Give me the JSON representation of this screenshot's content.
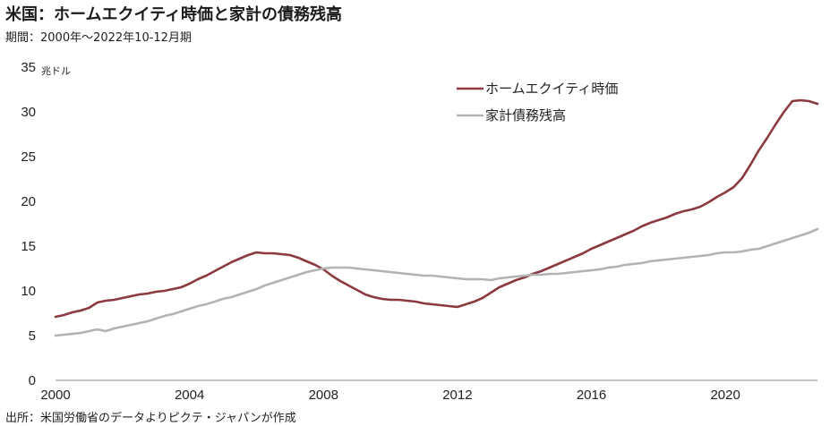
{
  "header": {
    "title": "米国：ホームエクイティ時価と家計の債務残高",
    "subtitle": "期間：2000年～2022年10-12月期"
  },
  "footer": {
    "source": "出所：米国労働省のデータよりピクテ・ジャパンが作成"
  },
  "chart_data": {
    "type": "line",
    "title": "米国：ホームエクイティ時価と家計の債務残高",
    "subtitle": "期間：2000年～2022年10-12月期",
    "ylabel": "兆ドル",
    "xlabel": "",
    "xlim": [
      2000,
      2022.75
    ],
    "ylim": [
      0,
      35
    ],
    "x_ticks": [
      2000,
      2004,
      2008,
      2012,
      2016,
      2020
    ],
    "y_ticks": [
      0,
      5,
      10,
      15,
      20,
      25,
      30,
      35
    ],
    "grid": false,
    "legend_position": "top-right",
    "series": [
      {
        "name": "ホームエクイティ時価",
        "color": "#8b3a40",
        "points": [
          [
            2000.0,
            7.1
          ],
          [
            2000.25,
            7.3
          ],
          [
            2000.5,
            7.6
          ],
          [
            2000.75,
            7.8
          ],
          [
            2001.0,
            8.1
          ],
          [
            2001.25,
            8.7
          ],
          [
            2001.5,
            8.9
          ],
          [
            2001.75,
            9.0
          ],
          [
            2002.0,
            9.2
          ],
          [
            2002.25,
            9.4
          ],
          [
            2002.5,
            9.6
          ],
          [
            2002.75,
            9.7
          ],
          [
            2003.0,
            9.9
          ],
          [
            2003.25,
            10.0
          ],
          [
            2003.5,
            10.2
          ],
          [
            2003.75,
            10.4
          ],
          [
            2004.0,
            10.8
          ],
          [
            2004.25,
            11.3
          ],
          [
            2004.5,
            11.7
          ],
          [
            2004.75,
            12.2
          ],
          [
            2005.0,
            12.7
          ],
          [
            2005.25,
            13.2
          ],
          [
            2005.5,
            13.6
          ],
          [
            2005.75,
            14.0
          ],
          [
            2006.0,
            14.3
          ],
          [
            2006.25,
            14.2
          ],
          [
            2006.5,
            14.2
          ],
          [
            2006.75,
            14.1
          ],
          [
            2007.0,
            14.0
          ],
          [
            2007.25,
            13.7
          ],
          [
            2007.5,
            13.3
          ],
          [
            2007.75,
            12.9
          ],
          [
            2008.0,
            12.4
          ],
          [
            2008.25,
            11.7
          ],
          [
            2008.5,
            11.1
          ],
          [
            2008.75,
            10.6
          ],
          [
            2009.0,
            10.1
          ],
          [
            2009.25,
            9.6
          ],
          [
            2009.5,
            9.3
          ],
          [
            2009.75,
            9.1
          ],
          [
            2010.0,
            9.0
          ],
          [
            2010.25,
            9.0
          ],
          [
            2010.5,
            8.9
          ],
          [
            2010.75,
            8.8
          ],
          [
            2011.0,
            8.6
          ],
          [
            2011.25,
            8.5
          ],
          [
            2011.5,
            8.4
          ],
          [
            2011.75,
            8.3
          ],
          [
            2012.0,
            8.2
          ],
          [
            2012.25,
            8.5
          ],
          [
            2012.5,
            8.8
          ],
          [
            2012.75,
            9.2
          ],
          [
            2013.0,
            9.8
          ],
          [
            2013.25,
            10.4
          ],
          [
            2013.5,
            10.8
          ],
          [
            2013.75,
            11.2
          ],
          [
            2014.0,
            11.5
          ],
          [
            2014.25,
            11.9
          ],
          [
            2014.5,
            12.2
          ],
          [
            2014.75,
            12.6
          ],
          [
            2015.0,
            13.0
          ],
          [
            2015.25,
            13.4
          ],
          [
            2015.5,
            13.8
          ],
          [
            2015.75,
            14.2
          ],
          [
            2016.0,
            14.7
          ],
          [
            2016.25,
            15.1
          ],
          [
            2016.5,
            15.5
          ],
          [
            2016.75,
            15.9
          ],
          [
            2017.0,
            16.3
          ],
          [
            2017.25,
            16.7
          ],
          [
            2017.5,
            17.2
          ],
          [
            2017.75,
            17.6
          ],
          [
            2018.0,
            17.9
          ],
          [
            2018.25,
            18.2
          ],
          [
            2018.5,
            18.6
          ],
          [
            2018.75,
            18.9
          ],
          [
            2019.0,
            19.1
          ],
          [
            2019.25,
            19.4
          ],
          [
            2019.5,
            19.9
          ],
          [
            2019.75,
            20.5
          ],
          [
            2020.0,
            21.0
          ],
          [
            2020.25,
            21.6
          ],
          [
            2020.5,
            22.6
          ],
          [
            2020.75,
            24.1
          ],
          [
            2021.0,
            25.7
          ],
          [
            2021.25,
            27.1
          ],
          [
            2021.5,
            28.6
          ],
          [
            2021.75,
            30.0
          ],
          [
            2022.0,
            31.2
          ],
          [
            2022.25,
            31.3
          ],
          [
            2022.5,
            31.2
          ],
          [
            2022.75,
            30.9
          ]
        ]
      },
      {
        "name": "家計債務残高",
        "color": "#b3b3b3",
        "points": [
          [
            2000.0,
            5.0
          ],
          [
            2000.25,
            5.1
          ],
          [
            2000.5,
            5.2
          ],
          [
            2000.75,
            5.3
          ],
          [
            2001.0,
            5.5
          ],
          [
            2001.25,
            5.7
          ],
          [
            2001.5,
            5.5
          ],
          [
            2001.75,
            5.8
          ],
          [
            2002.0,
            6.0
          ],
          [
            2002.25,
            6.2
          ],
          [
            2002.5,
            6.4
          ],
          [
            2002.75,
            6.6
          ],
          [
            2003.0,
            6.9
          ],
          [
            2003.25,
            7.2
          ],
          [
            2003.5,
            7.4
          ],
          [
            2003.75,
            7.7
          ],
          [
            2004.0,
            8.0
          ],
          [
            2004.25,
            8.3
          ],
          [
            2004.5,
            8.5
          ],
          [
            2004.75,
            8.8
          ],
          [
            2005.0,
            9.1
          ],
          [
            2005.25,
            9.3
          ],
          [
            2005.5,
            9.6
          ],
          [
            2005.75,
            9.9
          ],
          [
            2006.0,
            10.2
          ],
          [
            2006.25,
            10.6
          ],
          [
            2006.5,
            10.9
          ],
          [
            2006.75,
            11.2
          ],
          [
            2007.0,
            11.5
          ],
          [
            2007.25,
            11.8
          ],
          [
            2007.5,
            12.1
          ],
          [
            2007.75,
            12.3
          ],
          [
            2008.0,
            12.5
          ],
          [
            2008.25,
            12.6
          ],
          [
            2008.5,
            12.6
          ],
          [
            2008.75,
            12.6
          ],
          [
            2009.0,
            12.5
          ],
          [
            2009.25,
            12.4
          ],
          [
            2009.5,
            12.3
          ],
          [
            2009.75,
            12.2
          ],
          [
            2010.0,
            12.1
          ],
          [
            2010.25,
            12.0
          ],
          [
            2010.5,
            11.9
          ],
          [
            2010.75,
            11.8
          ],
          [
            2011.0,
            11.7
          ],
          [
            2011.25,
            11.7
          ],
          [
            2011.5,
            11.6
          ],
          [
            2011.75,
            11.5
          ],
          [
            2012.0,
            11.4
          ],
          [
            2012.25,
            11.3
          ],
          [
            2012.5,
            11.3
          ],
          [
            2012.75,
            11.3
          ],
          [
            2013.0,
            11.2
          ],
          [
            2013.25,
            11.4
          ],
          [
            2013.5,
            11.5
          ],
          [
            2013.75,
            11.6
          ],
          [
            2014.0,
            11.7
          ],
          [
            2014.25,
            11.8
          ],
          [
            2014.5,
            11.8
          ],
          [
            2014.75,
            11.9
          ],
          [
            2015.0,
            11.9
          ],
          [
            2015.25,
            12.0
          ],
          [
            2015.5,
            12.1
          ],
          [
            2015.75,
            12.2
          ],
          [
            2016.0,
            12.3
          ],
          [
            2016.25,
            12.4
          ],
          [
            2016.5,
            12.6
          ],
          [
            2016.75,
            12.7
          ],
          [
            2017.0,
            12.9
          ],
          [
            2017.25,
            13.0
          ],
          [
            2017.5,
            13.1
          ],
          [
            2017.75,
            13.3
          ],
          [
            2018.0,
            13.4
          ],
          [
            2018.25,
            13.5
          ],
          [
            2018.5,
            13.6
          ],
          [
            2018.75,
            13.7
          ],
          [
            2019.0,
            13.8
          ],
          [
            2019.25,
            13.9
          ],
          [
            2019.5,
            14.0
          ],
          [
            2019.75,
            14.2
          ],
          [
            2020.0,
            14.3
          ],
          [
            2020.25,
            14.3
          ],
          [
            2020.5,
            14.4
          ],
          [
            2020.75,
            14.6
          ],
          [
            2021.0,
            14.7
          ],
          [
            2021.25,
            15.0
          ],
          [
            2021.5,
            15.3
          ],
          [
            2021.75,
            15.6
          ],
          [
            2022.0,
            15.9
          ],
          [
            2022.25,
            16.2
          ],
          [
            2022.5,
            16.5
          ],
          [
            2022.75,
            16.9
          ]
        ]
      }
    ]
  }
}
